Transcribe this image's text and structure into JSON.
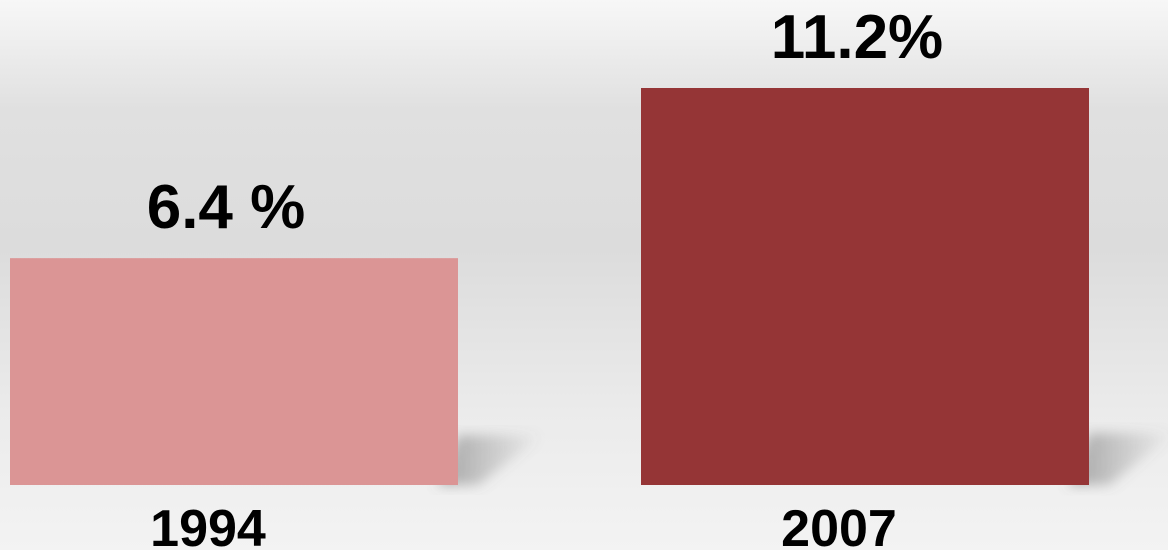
{
  "chart_data": {
    "type": "bar",
    "categories": [
      "1994",
      "2007"
    ],
    "values": [
      6.4,
      11.2
    ],
    "value_labels": [
      "6.4 %",
      "11.2%"
    ],
    "bar_colors": [
      "#db9595",
      "#953536"
    ],
    "title": "",
    "xlabel": "",
    "ylabel": "",
    "ylim": [
      0,
      11.2
    ],
    "grid": false,
    "legend": "none"
  }
}
